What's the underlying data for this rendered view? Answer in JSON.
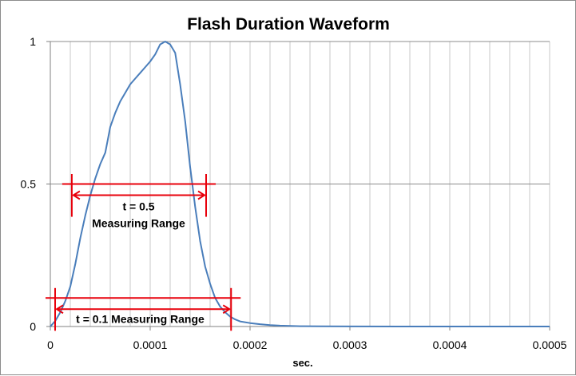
{
  "chart_data": {
    "type": "line",
    "title": "Flash Duration Waveform",
    "xlabel": "sec.",
    "ylabel": "",
    "xlim": [
      0,
      0.0005
    ],
    "ylim": [
      0,
      1
    ],
    "x_ticks": [
      "0",
      "0.0001",
      "0.0002",
      "0.0003",
      "0.0004",
      "0.0005"
    ],
    "y_ticks": [
      "0",
      "0.5",
      "1"
    ],
    "x_tick_values": [
      0,
      0.0001,
      0.0002,
      0.0003,
      0.0004,
      0.0005
    ],
    "y_tick_values": [
      0,
      0.5,
      1
    ],
    "x_minor_step": 2e-05,
    "grid": true,
    "legend": "none",
    "series_color": "#4a7ebb",
    "annotation_color": "#e8000b",
    "series": [
      {
        "x": [
          0,
          5e-06,
          1e-05,
          1.5e-05,
          2e-05,
          2.5e-05,
          3e-05,
          3.5e-05,
          4e-05,
          4.5e-05,
          5e-05,
          5.5e-05,
          6e-05,
          6.5e-05,
          7e-05,
          7.5e-05,
          8e-05,
          8.5e-05,
          9e-05,
          9.5e-05,
          0.0001,
          0.000105,
          0.00011,
          0.000115,
          0.00012,
          0.000125,
          0.00013,
          0.000135,
          0.00014,
          0.000145,
          0.00015,
          0.000155,
          0.00016,
          0.000165,
          0.00017,
          0.000175,
          0.00018,
          0.000185,
          0.00019,
          0.0002,
          0.00021,
          0.00022,
          0.00023,
          0.00024,
          0.00025,
          0.00027,
          0.0003,
          0.00035,
          0.0004,
          0.00045,
          0.0005
        ],
        "y": [
          0,
          0.02,
          0.05,
          0.09,
          0.14,
          0.22,
          0.31,
          0.39,
          0.46,
          0.52,
          0.57,
          0.61,
          0.7,
          0.75,
          0.79,
          0.82,
          0.85,
          0.87,
          0.89,
          0.91,
          0.93,
          0.955,
          0.99,
          1.0,
          0.99,
          0.96,
          0.85,
          0.72,
          0.56,
          0.42,
          0.3,
          0.21,
          0.15,
          0.1,
          0.07,
          0.05,
          0.035,
          0.025,
          0.018,
          0.012,
          0.008,
          0.005,
          0.003,
          0.002,
          0.001,
          0.0005,
          0.0002,
          0.0001,
          0,
          0,
          0
        ]
      }
    ],
    "annotations": [
      {
        "label_lines": [
          "t = 0.5",
          "Measuring Range"
        ],
        "level": 0.5,
        "x_start": 2.15e-05,
        "x_end": 0.000156,
        "label_x": 8.84e-05,
        "label_y_top": 0.408,
        "markers": [
          {
            "x": 2.15e-05,
            "y_top": 0.535,
            "y_bottom": 0.385
          },
          {
            "x": 0.000156,
            "y_top": 0.535,
            "y_bottom": 0.385
          }
        ]
      },
      {
        "label_lines": [
          "t = 0.1 Measuring Range"
        ],
        "level": 0.1,
        "x_start": 4.8e-06,
        "x_end": 0.000181,
        "label_x": 9e-05,
        "label_y_top": 0.012,
        "markers": [
          {
            "x": 4.8e-06,
            "y_top": 0.135,
            "y_bottom": -0.015
          },
          {
            "x": 0.000181,
            "y_top": 0.135,
            "y_bottom": -0.015
          }
        ]
      }
    ]
  }
}
